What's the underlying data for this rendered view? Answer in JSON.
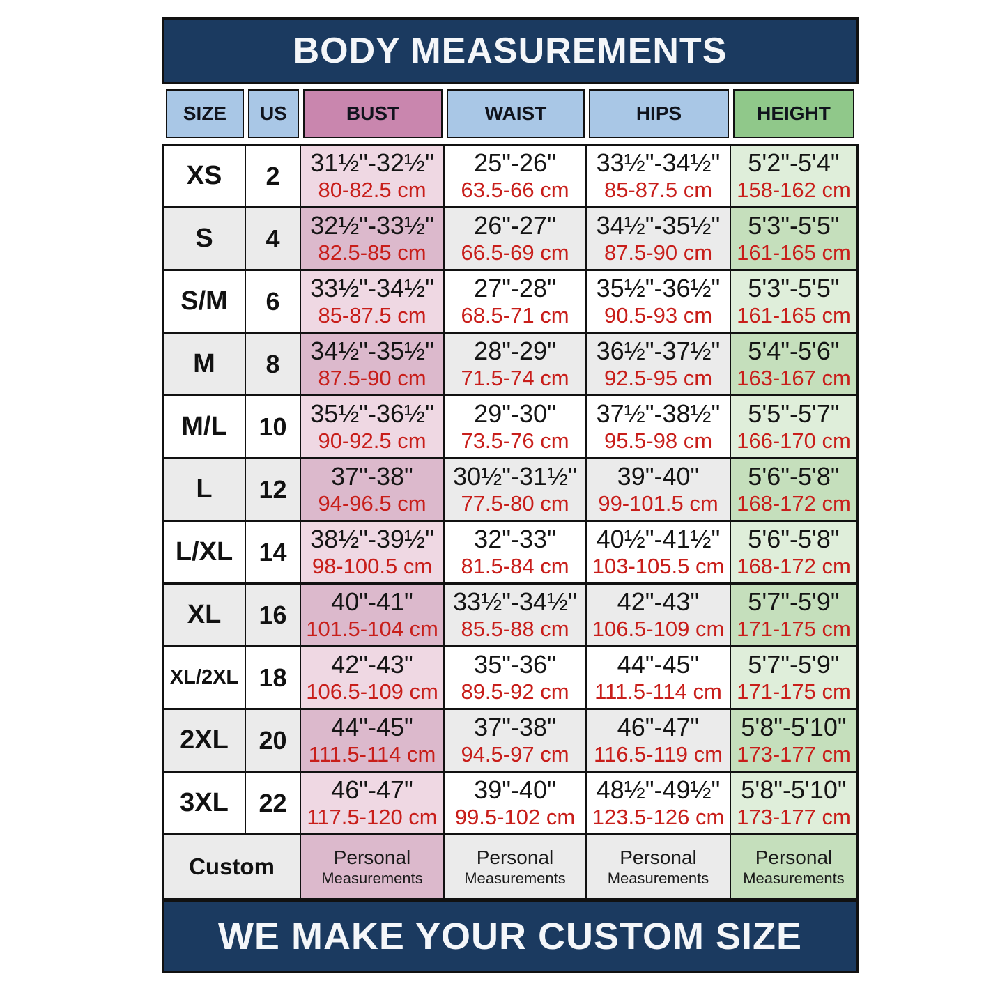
{
  "title": "BODY MEASUREMENTS",
  "footer": "WE MAKE YOUR CUSTOM SIZE",
  "colors": {
    "band_navy": "#1b3a60",
    "header_blue": "#a9c7e6",
    "header_pink": "#c986ae",
    "header_green": "#90c88a",
    "row_pink_light": "#efd8e3",
    "row_pink_dark": "#dcb9cc",
    "row_green_light": "#dfeeda",
    "row_green_dark": "#c5dfbc",
    "row_gray": "#ebebeb",
    "cm_text_red": "#c81e1a",
    "border_black": "#111111"
  },
  "chart_data": {
    "type": "table",
    "title": "BODY MEASUREMENTS",
    "columns": [
      "SIZE",
      "US",
      "BUST",
      "WAIST",
      "HIPS",
      "HEIGHT"
    ],
    "rows": [
      {
        "size": "XS",
        "us": "2",
        "bust_in": "31½\"-32½\"",
        "bust_cm": "80-82.5 cm",
        "waist_in": "25\"-26\"",
        "waist_cm": "63.5-66 cm",
        "hips_in": "33½\"-34½\"",
        "hips_cm": "85-87.5 cm",
        "height_in": "5'2\"-5'4\"",
        "height_cm": "158-162 cm"
      },
      {
        "size": "S",
        "us": "4",
        "bust_in": "32½\"-33½\"",
        "bust_cm": "82.5-85 cm",
        "waist_in": "26\"-27\"",
        "waist_cm": "66.5-69 cm",
        "hips_in": "34½\"-35½\"",
        "hips_cm": "87.5-90 cm",
        "height_in": "5'3\"-5'5\"",
        "height_cm": "161-165 cm"
      },
      {
        "size": "S/M",
        "us": "6",
        "bust_in": "33½\"-34½\"",
        "bust_cm": "85-87.5 cm",
        "waist_in": "27\"-28\"",
        "waist_cm": "68.5-71 cm",
        "hips_in": "35½\"-36½\"",
        "hips_cm": "90.5-93 cm",
        "height_in": "5'3\"-5'5\"",
        "height_cm": "161-165 cm"
      },
      {
        "size": "M",
        "us": "8",
        "bust_in": "34½\"-35½\"",
        "bust_cm": "87.5-90 cm",
        "waist_in": "28\"-29\"",
        "waist_cm": "71.5-74 cm",
        "hips_in": "36½\"-37½\"",
        "hips_cm": "92.5-95 cm",
        "height_in": "5'4\"-5'6\"",
        "height_cm": "163-167 cm"
      },
      {
        "size": "M/L",
        "us": "10",
        "bust_in": "35½\"-36½\"",
        "bust_cm": "90-92.5 cm",
        "waist_in": "29\"-30\"",
        "waist_cm": "73.5-76 cm",
        "hips_in": "37½\"-38½\"",
        "hips_cm": "95.5-98 cm",
        "height_in": "5'5\"-5'7\"",
        "height_cm": "166-170 cm"
      },
      {
        "size": "L",
        "us": "12",
        "bust_in": "37\"-38\"",
        "bust_cm": "94-96.5 cm",
        "waist_in": "30½\"-31½\"",
        "waist_cm": "77.5-80 cm",
        "hips_in": "39\"-40\"",
        "hips_cm": "99-101.5 cm",
        "height_in": "5'6\"-5'8\"",
        "height_cm": "168-172 cm"
      },
      {
        "size": "L/XL",
        "us": "14",
        "bust_in": "38½\"-39½\"",
        "bust_cm": "98-100.5 cm",
        "waist_in": "32\"-33\"",
        "waist_cm": "81.5-84 cm",
        "hips_in": "40½\"-41½\"",
        "hips_cm": "103-105.5 cm",
        "height_in": "5'6\"-5'8\"",
        "height_cm": "168-172 cm"
      },
      {
        "size": "XL",
        "us": "16",
        "bust_in": "40\"-41\"",
        "bust_cm": "101.5-104 cm",
        "waist_in": "33½\"-34½\"",
        "waist_cm": "85.5-88 cm",
        "hips_in": "42\"-43\"",
        "hips_cm": "106.5-109 cm",
        "height_in": "5'7\"-5'9\"",
        "height_cm": "171-175 cm"
      },
      {
        "size": "XL/2XL",
        "us": "18",
        "bust_in": "42\"-43\"",
        "bust_cm": "106.5-109 cm",
        "waist_in": "35\"-36\"",
        "waist_cm": "89.5-92 cm",
        "hips_in": "44\"-45\"",
        "hips_cm": "111.5-114 cm",
        "height_in": "5'7\"-5'9\"",
        "height_cm": "171-175 cm"
      },
      {
        "size": "2XL",
        "us": "20",
        "bust_in": "44\"-45\"",
        "bust_cm": "111.5-114 cm",
        "waist_in": "37\"-38\"",
        "waist_cm": "94.5-97 cm",
        "hips_in": "46\"-47\"",
        "hips_cm": "116.5-119 cm",
        "height_in": "5'8\"-5'10\"",
        "height_cm": "173-177 cm"
      },
      {
        "size": "3XL",
        "us": "22",
        "bust_in": "46\"-47\"",
        "bust_cm": "117.5-120 cm",
        "waist_in": "39\"-40\"",
        "waist_cm": "99.5-102 cm",
        "hips_in": "48½\"-49½\"",
        "hips_cm": "123.5-126 cm",
        "height_in": "5'8\"-5'10\"",
        "height_cm": "173-177 cm"
      }
    ],
    "custom_row": {
      "label": "Custom",
      "cell_primary": "Personal",
      "cell_secondary": "Measurements"
    }
  }
}
